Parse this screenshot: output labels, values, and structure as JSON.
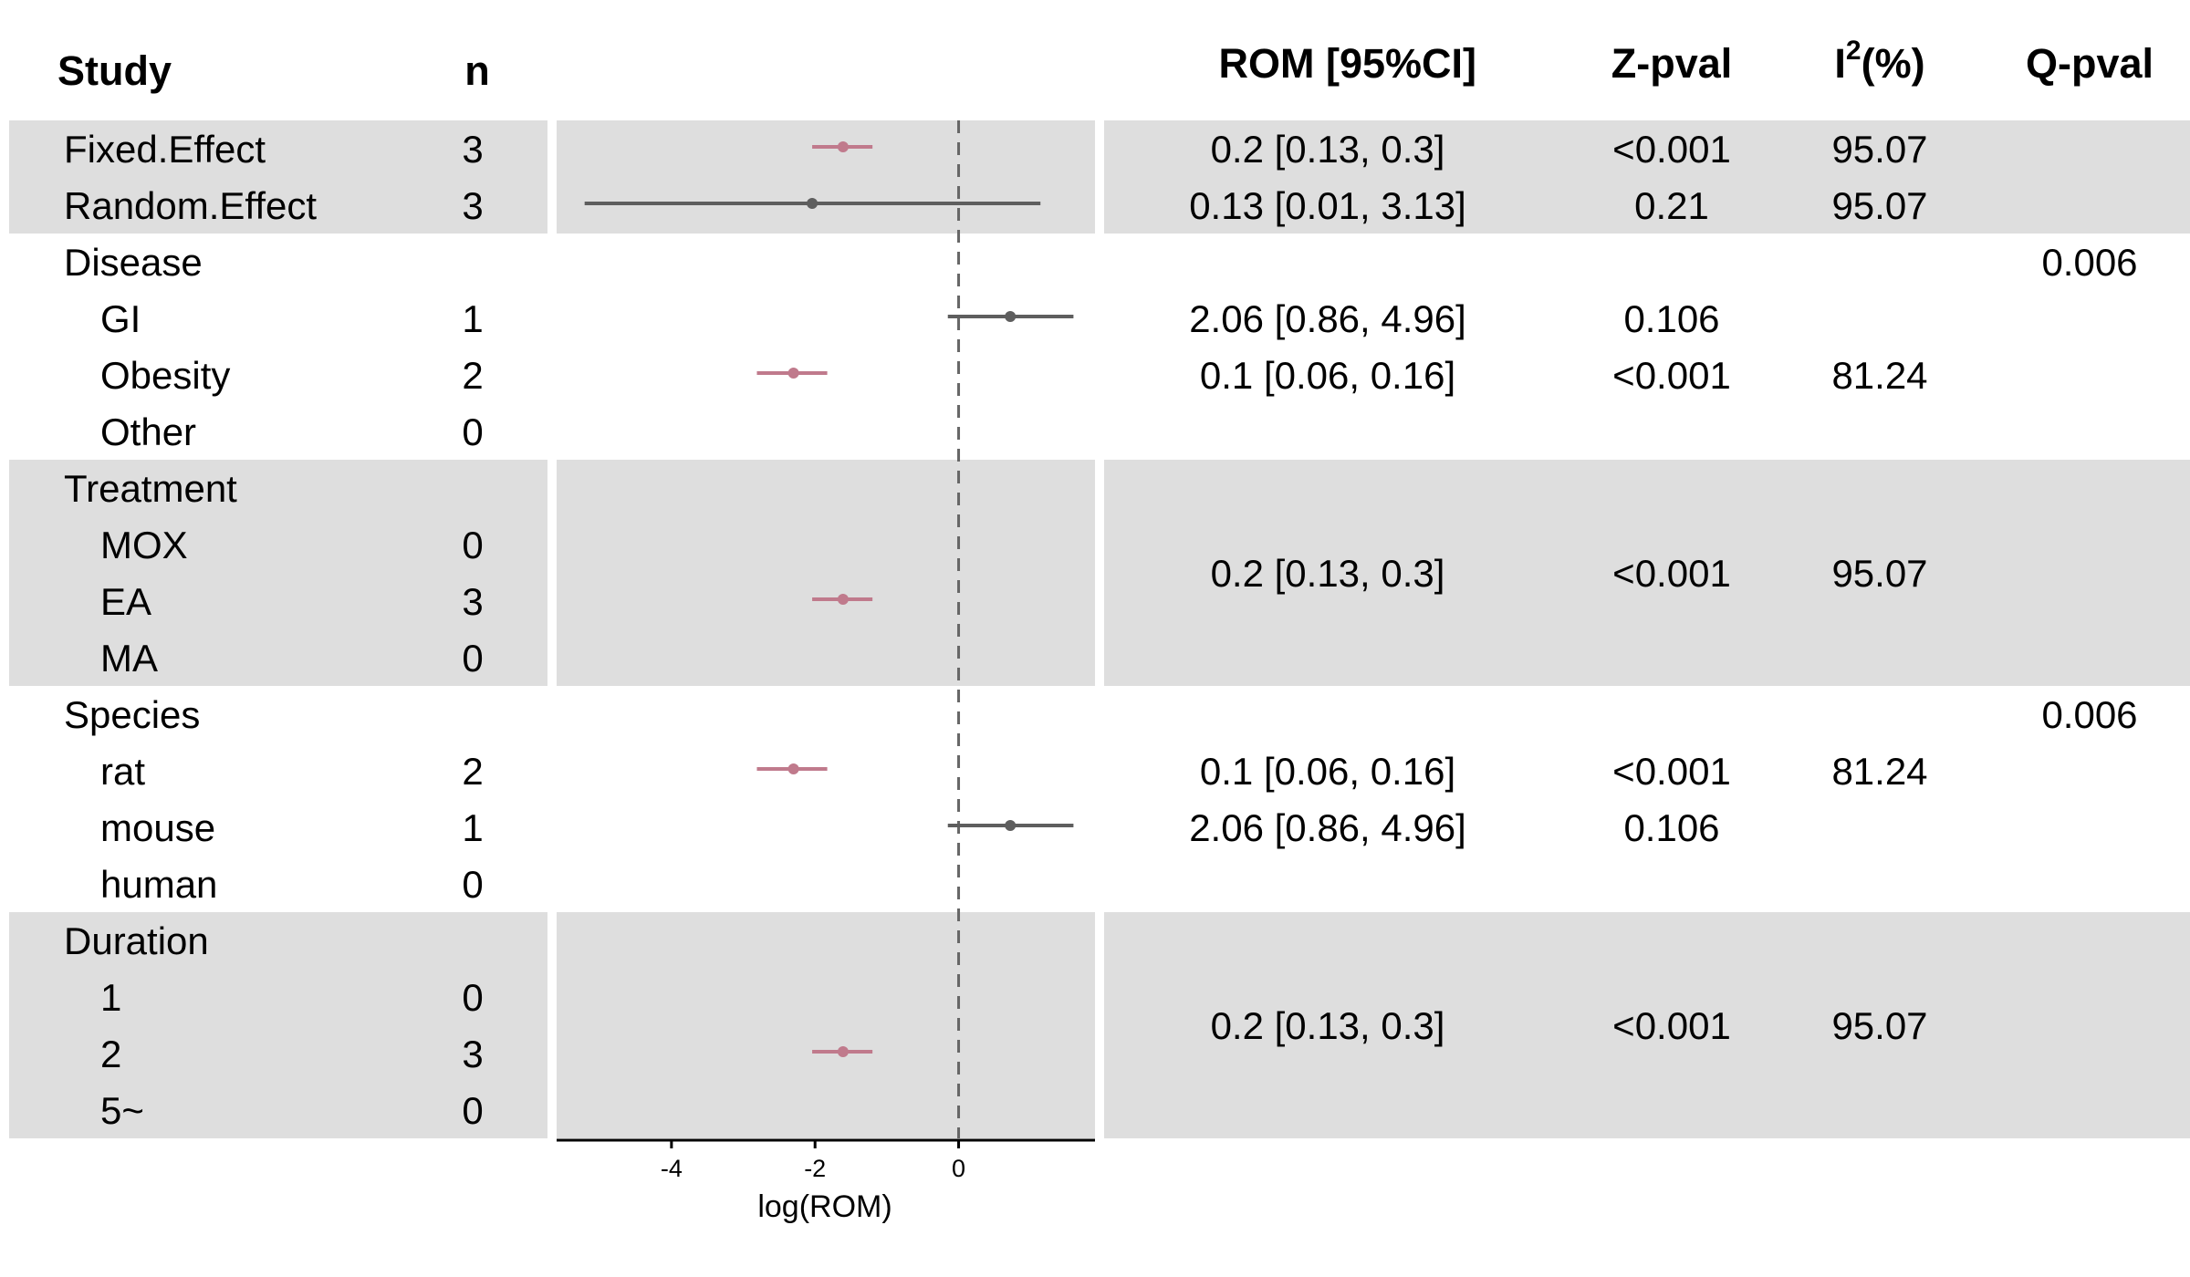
{
  "colors": {
    "band": "#dedede",
    "significant": "#c07a8c",
    "nonsignificant": "#5e5e5e",
    "reference_line": "#666666",
    "axis": "#000000"
  },
  "headers": {
    "study": "Study",
    "n": "n",
    "rom": "ROM [95%CI]",
    "zpval": "Z-pval",
    "i2_base": "I",
    "i2_sup": "2",
    "i2_suffix": "(%)",
    "qpval": "Q-pval"
  },
  "chart_data": {
    "type": "forest",
    "xlabel": "log(ROM)",
    "xlim": [
      -5.6,
      1.9
    ],
    "xticks": [
      -4,
      -2,
      0
    ],
    "xtick_labels": [
      "-4",
      "-2",
      "0"
    ],
    "reference_x": 0,
    "reference_style": "dashed",
    "grid": false,
    "rows": [
      {
        "label": "Fixed.Effect",
        "indent": false,
        "n": "3",
        "rom": "0.2 [0.13, 0.3]",
        "zpval": "<0.001",
        "i2": "95.07",
        "qpval": "",
        "est": -1.61,
        "lo": -2.04,
        "hi": -1.2,
        "significant": true
      },
      {
        "label": "Random.Effect",
        "indent": false,
        "n": "3",
        "rom": "0.13 [0.01, 3.13]",
        "zpval": "0.21",
        "i2": "95.07",
        "qpval": "",
        "est": -2.04,
        "lo": -5.21,
        "hi": 1.14,
        "significant": false
      },
      {
        "label": "Disease",
        "indent": false,
        "n": "",
        "rom": "",
        "zpval": "",
        "i2": "",
        "qpval": "0.006"
      },
      {
        "label": "GI",
        "indent": true,
        "n": "1",
        "rom": "2.06 [0.86, 4.96]",
        "zpval": "0.106",
        "i2": "",
        "qpval": "",
        "est": 0.72,
        "lo": -0.15,
        "hi": 1.6,
        "significant": false
      },
      {
        "label": "Obesity",
        "indent": true,
        "n": "2",
        "rom": "0.1 [0.06, 0.16]",
        "zpval": "<0.001",
        "i2": "81.24",
        "qpval": "",
        "est": -2.3,
        "lo": -2.81,
        "hi": -1.83,
        "significant": true
      },
      {
        "label": "Other",
        "indent": true,
        "n": "0",
        "rom": "",
        "zpval": "",
        "i2": "",
        "qpval": ""
      },
      {
        "label": "Treatment",
        "indent": false,
        "n": "",
        "rom": "",
        "zpval": "",
        "i2": "",
        "qpval": ""
      },
      {
        "label": "MOX",
        "indent": true,
        "n": "0",
        "rom": "",
        "zpval": "",
        "i2": "",
        "qpval": ""
      },
      {
        "label": "EA",
        "indent": true,
        "n": "3",
        "rom": "0.2 [0.13, 0.3]",
        "zpval": "<0.001",
        "i2": "95.07",
        "qpval": "",
        "est": -1.61,
        "lo": -2.04,
        "hi": -1.2,
        "significant": true
      },
      {
        "label": "MA",
        "indent": true,
        "n": "0",
        "rom": "",
        "zpval": "",
        "i2": "",
        "qpval": ""
      },
      {
        "label": "Species",
        "indent": false,
        "n": "",
        "rom": "",
        "zpval": "",
        "i2": "",
        "qpval": "0.006"
      },
      {
        "label": "rat",
        "indent": true,
        "n": "2",
        "rom": "0.1 [0.06, 0.16]",
        "zpval": "<0.001",
        "i2": "81.24",
        "qpval": "",
        "est": -2.3,
        "lo": -2.81,
        "hi": -1.83,
        "significant": true
      },
      {
        "label": "mouse",
        "indent": true,
        "n": "1",
        "rom": "2.06 [0.86, 4.96]",
        "zpval": "0.106",
        "i2": "",
        "qpval": "",
        "est": 0.72,
        "lo": -0.15,
        "hi": 1.6,
        "significant": false
      },
      {
        "label": "human",
        "indent": true,
        "n": "0",
        "rom": "",
        "zpval": "",
        "i2": "",
        "qpval": ""
      },
      {
        "label": "Duration",
        "indent": false,
        "n": "",
        "rom": "",
        "zpval": "",
        "i2": "",
        "qpval": ""
      },
      {
        "label": "1",
        "indent": true,
        "n": "0",
        "rom": "",
        "zpval": "",
        "i2": "",
        "qpval": ""
      },
      {
        "label": "2",
        "indent": true,
        "n": "3",
        "rom": "0.2 [0.13, 0.3]",
        "zpval": "<0.001",
        "i2": "95.07",
        "qpval": "",
        "est": -1.61,
        "lo": -2.04,
        "hi": -1.2,
        "significant": true
      },
      {
        "label": "5~",
        "indent": true,
        "n": "0",
        "rom": "",
        "zpval": "",
        "i2": "",
        "qpval": ""
      }
    ],
    "bands": [
      {
        "name": "overall",
        "rows": [
          0,
          1
        ]
      },
      {
        "name": "treatment",
        "rows": [
          6,
          9
        ]
      },
      {
        "name": "duration",
        "rows": [
          14,
          17
        ]
      }
    ],
    "merged_stats": [
      {
        "rows": [
          6,
          9
        ],
        "rom": "0.2 [0.13, 0.3]",
        "zpval": "<0.001",
        "i2": "95.07"
      },
      {
        "rows": [
          14,
          17
        ],
        "rom": "0.2 [0.13, 0.3]",
        "zpval": "<0.001",
        "i2": "95.07"
      }
    ]
  }
}
